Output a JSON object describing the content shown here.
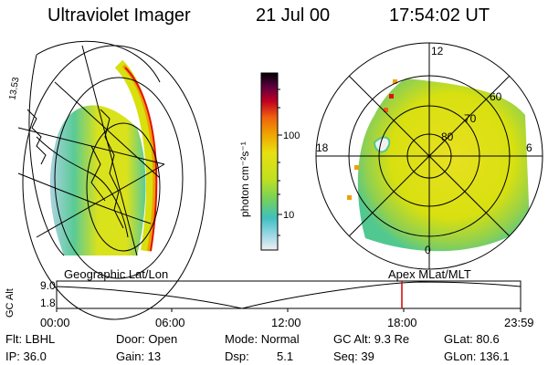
{
  "header": {
    "instrument": "Ultraviolet Imager",
    "date": "21 Jul 00",
    "time": "17:54:02 UT"
  },
  "colorbar": {
    "unit_label": "photon cm⁻²s⁻¹",
    "ticks": [
      "100",
      "10"
    ],
    "scale": "log"
  },
  "left_map": {
    "label": "Geographic Lat/Lon",
    "edge_label": "13.53"
  },
  "polar_map": {
    "label": "Apex MLat/MLT",
    "mlt_labels": [
      "12",
      "18",
      "6",
      "0"
    ],
    "mlat_labels": [
      "60",
      "70",
      "80"
    ]
  },
  "altitude_plot": {
    "y_label": "GC Alt",
    "y_ticks": [
      "9.0",
      "1.8"
    ],
    "x_ticks": [
      "00:00",
      "06:00",
      "12:00",
      "18:00",
      "23:59"
    ],
    "marker_time": "17:54"
  },
  "info": {
    "flt": "Flt: LBHL",
    "ip": "IP: 36.0",
    "door": "Door: Open",
    "gain": "Gain: 13",
    "mode": "Mode: Normal",
    "dsp_label": "Dsp:",
    "dsp_value": "5.1",
    "gc_alt": "GC Alt: 9.3 Re",
    "seq": "Seq: 39",
    "glat": "GLat: 80.6",
    "glon": "GLon: 136.1"
  },
  "colors": {
    "marker": "#d40000",
    "high": "#000000",
    "mid_high": "#e01010",
    "mid": "#f0a000",
    "low_mid": "#d8e010",
    "low": "#50c890",
    "base": "#a8d0e0"
  }
}
